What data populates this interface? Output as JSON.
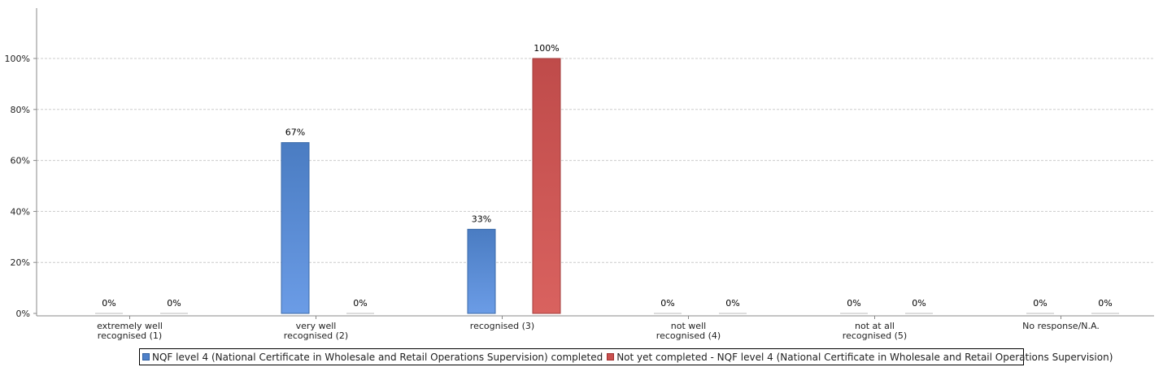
{
  "chart_data": {
    "type": "bar",
    "categories": [
      [
        "extremely well",
        "recognised (1)"
      ],
      [
        "very well",
        "recognised (2)"
      ],
      [
        "recognised (3)"
      ],
      [
        "not well",
        "recognised (4)"
      ],
      [
        "not at all",
        "recognised (5)"
      ],
      [
        "No response/N.A."
      ]
    ],
    "series": [
      {
        "name": "NQF level 4 (National Certificate in Wholesale and Retail Operations Supervision) completed",
        "color": "#4f81c9",
        "values": [
          0,
          67,
          33,
          0,
          0,
          0
        ],
        "labels": [
          "0%",
          "67%",
          "33%",
          "0%",
          "0%",
          "0%"
        ]
      },
      {
        "name": "Not yet completed - NQF level 4 (National Certificate in Wholesale and Retail Operations Supervision)",
        "color": "#c9504f",
        "values": [
          0,
          0,
          100,
          0,
          0,
          0
        ],
        "labels": [
          "0%",
          "0%",
          "100%",
          "0%",
          "0%",
          "0%"
        ]
      }
    ],
    "yticks": [
      "0%",
      "20%",
      "40%",
      "60%",
      "80%",
      "100%"
    ],
    "ylim": [
      0,
      120
    ],
    "grid": true,
    "legend_position": "bottom"
  }
}
